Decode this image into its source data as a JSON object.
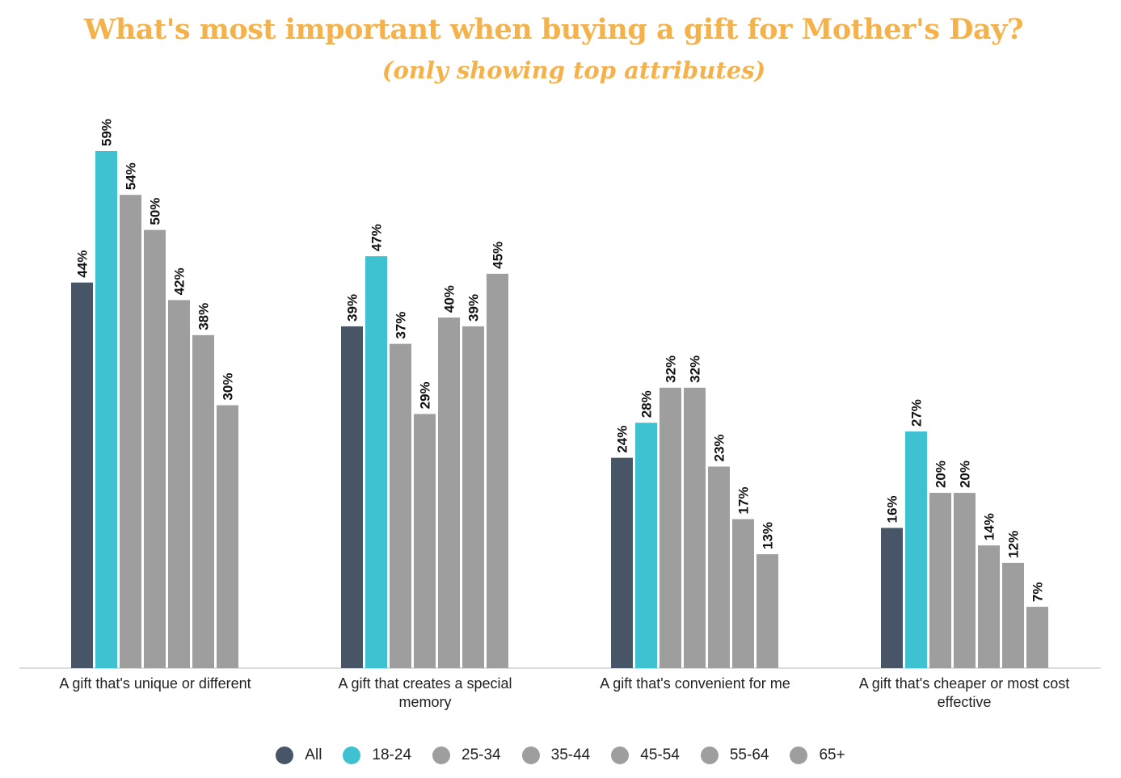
{
  "chart_data": {
    "type": "bar",
    "title": "What's most important when buying a gift for Mother's Day?",
    "subtitle": "(only showing top attributes)",
    "categories": [
      [
        "A gift that's unique or different"
      ],
      [
        "A gift that creates a special",
        "memory"
      ],
      [
        "A gift that's convenient for me"
      ],
      [
        "A gift that's cheaper or most cost",
        "effective"
      ]
    ],
    "series": [
      {
        "name": "All",
        "color": "#475566",
        "values": [
          44,
          39,
          24,
          16
        ],
        "labels": [
          "44%",
          "39%",
          "24%",
          "16%"
        ]
      },
      {
        "name": "18-24",
        "color": "#3ec1d0",
        "values": [
          59,
          47,
          28,
          27
        ],
        "labels": [
          "59%",
          "47%",
          "28%",
          "27%"
        ]
      },
      {
        "name": "25-34",
        "color": "#9e9e9e",
        "values": [
          54,
          37,
          32,
          20
        ],
        "labels": [
          "54%",
          "37%",
          "32%",
          "20%"
        ]
      },
      {
        "name": "35-44",
        "color": "#9e9e9e",
        "values": [
          50,
          29,
          32,
          20
        ],
        "labels": [
          "50%",
          "29%",
          "32%",
          "20%"
        ]
      },
      {
        "name": "45-54",
        "color": "#9e9e9e",
        "values": [
          42,
          40,
          23,
          14
        ],
        "labels": [
          "42%",
          "40%",
          "23%",
          "14%"
        ]
      },
      {
        "name": "55-64",
        "color": "#9e9e9e",
        "values": [
          38,
          39,
          17,
          12
        ],
        "labels": [
          "38%",
          "39%",
          "17%",
          "12%"
        ]
      },
      {
        "name": "65+",
        "color": "#9e9e9e",
        "values": [
          30,
          45,
          13,
          7
        ],
        "labels": [
          "30%",
          "45%",
          "13%",
          "7%"
        ]
      }
    ],
    "ylim": [
      0,
      60
    ],
    "grid": false,
    "legend_position": "bottom"
  }
}
